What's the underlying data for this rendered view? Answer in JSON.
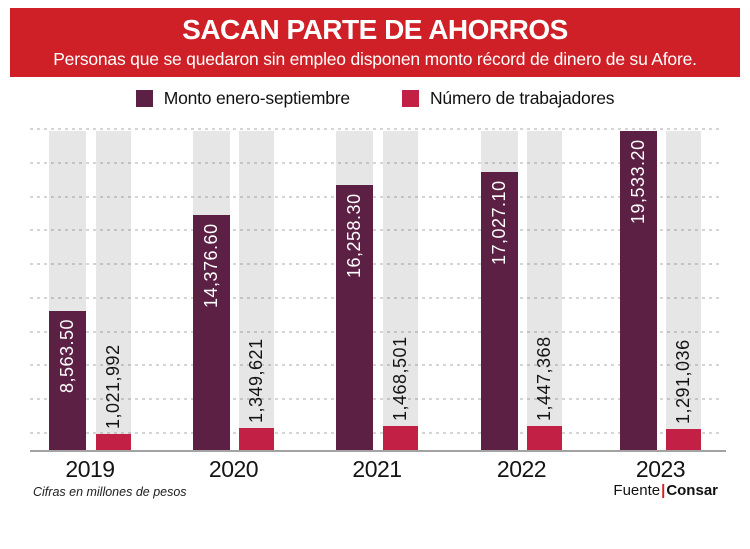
{
  "header": {
    "title": "SACAN PARTE DE AHORROS",
    "subtitle": "Personas que se quedaron sin empleo disponen monto récord de dinero de su Afore."
  },
  "legend": [
    {
      "label": "Monto enero-septiembre",
      "color": "#5c2045"
    },
    {
      "label": "Número de trabajadores",
      "color": "#c22045"
    }
  ],
  "chart_data": {
    "type": "bar",
    "title": "SACAN PARTE DE AHORROS",
    "subtitle": "Personas que se quedaron sin empleo disponen monto récord de dinero de su Afore.",
    "categories": [
      "2019",
      "2020",
      "2021",
      "2022",
      "2023"
    ],
    "series": [
      {
        "name": "Monto enero-septiembre",
        "color": "#5c2045",
        "values": [
          8563.5,
          14376.6,
          16258.3,
          17027.1,
          19533.2
        ],
        "labels": [
          "8,563.50",
          "14,376.60",
          "16,258.30",
          "17,027.10",
          "19,533.20"
        ],
        "label_position": "inside-top",
        "unit": "millones de pesos"
      },
      {
        "name": "Número de trabajadores",
        "color": "#c22045",
        "values": [
          1021992,
          1349621,
          1468501,
          1447368,
          1291036
        ],
        "labels": [
          "1,021,992",
          "1,349,621",
          "1,468,501",
          "1,447,368",
          "1,291,036"
        ],
        "label_position": "above",
        "unit": "trabajadores"
      }
    ],
    "grid": "horizontal-dashed",
    "gridline_count": 10,
    "legend_position": "top",
    "background_tracks": true,
    "ylim_monto": [
      0,
      19533.2
    ],
    "note": "Cifras en millones de pesos",
    "source": "Fuente|Consar"
  },
  "footer": {
    "note": "Cifras en millones de pesos",
    "source_prefix": "Fuente",
    "source_separator": "|",
    "source_name": "Consar"
  },
  "colors": {
    "banner": "#ce2026",
    "monto_bar": "#5c2045",
    "trabajadores_bar": "#c22045",
    "track": "#e6e6e6",
    "baseline": "#a3a3a3",
    "source_separator": "#ce2026"
  }
}
